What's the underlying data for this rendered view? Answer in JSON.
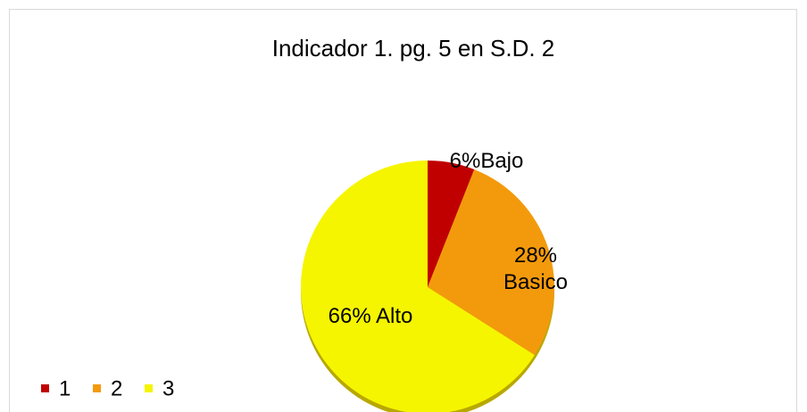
{
  "chart_data": {
    "type": "pie",
    "title": "Indicador 1. pg. 5 en  S.D. 2",
    "categories": [
      "1",
      "2",
      "3"
    ],
    "values": [
      6,
      28,
      66
    ],
    "value_labels": [
      "6%Bajo",
      "28% Basico",
      "66% Alto"
    ],
    "colors": [
      "#c00000",
      "#f39a0c",
      "#f5f500"
    ],
    "legend": "bottom-left"
  }
}
